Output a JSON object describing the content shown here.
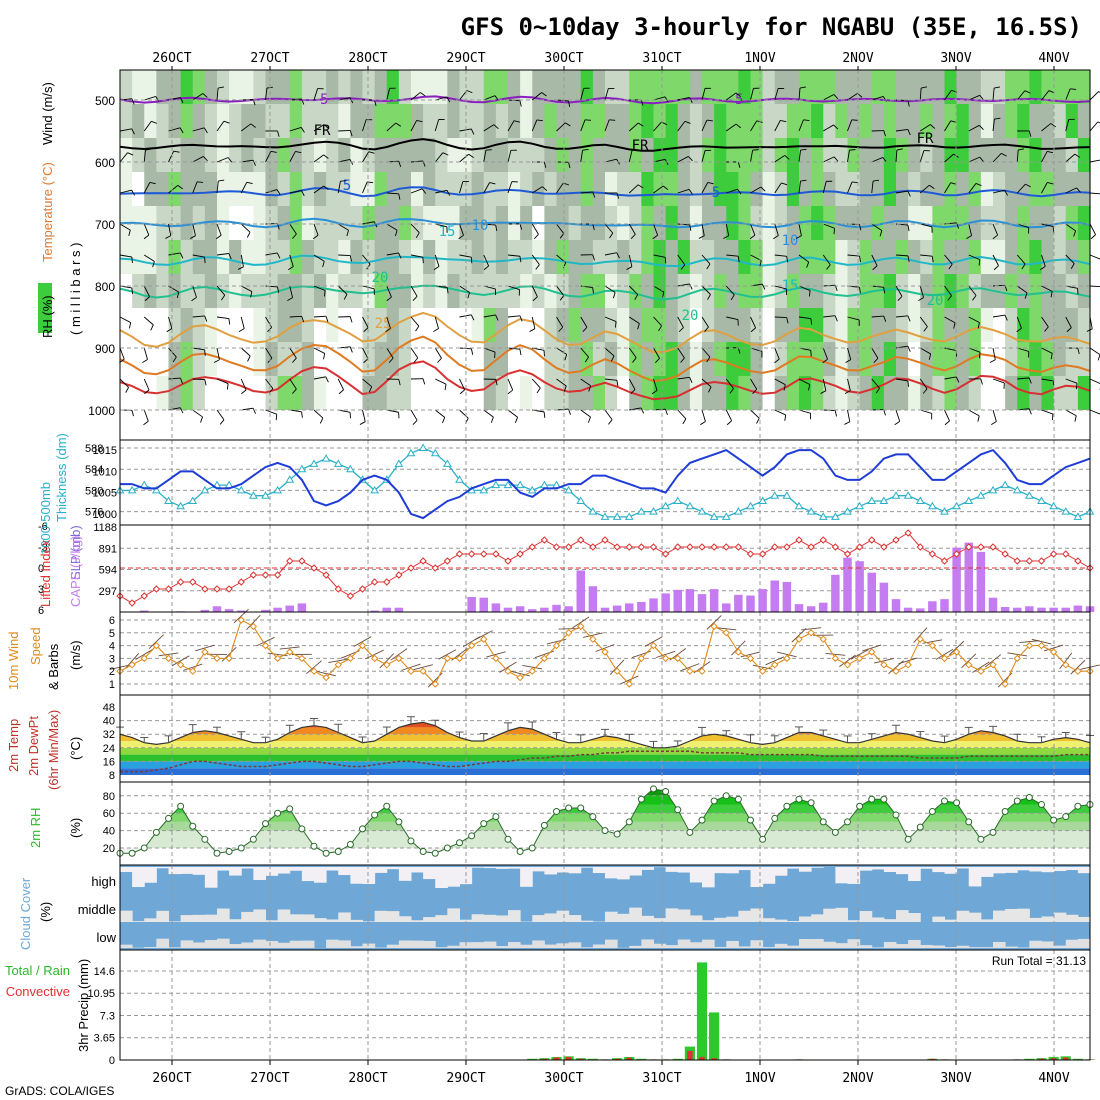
{
  "title": "GFS 0~10day 3-hourly for NGABU (35E, 16.5S)",
  "footer": "GrADS: COLA/IGES",
  "dates": [
    "26OCT",
    "27OCT",
    "28OCT",
    "29OCT",
    "30OCT",
    "31OCT",
    "1NOV",
    "2NOV",
    "3NOV",
    "4NOV"
  ],
  "colors": {
    "wind_line": "#000000",
    "cape_bar": "#c57cf0",
    "lifted_index": "#e03030",
    "slp": "#1e3cd6",
    "thickness": "#2ab0c8",
    "wind10m": "#e08a1a",
    "rh2m": "#2cb82c",
    "cloud": "#6fa8d6",
    "precip_total": "#2cc82c",
    "precip_conv": "#e03030"
  },
  "panels": {
    "upper": {
      "ylabel_rh": "RH (%)",
      "ylabel_temp": "Temperature (°C)",
      "ylabel_wind": "Wind (m/s)",
      "ylabel_mb": "( m i l l i b a r s )",
      "levels": [
        500,
        600,
        700,
        800,
        900,
        1000
      ],
      "isotherm_labels": [
        {
          "text": "-5"
        },
        {
          "text": "-5"
        },
        {
          "text": "FR"
        },
        {
          "text": "FR"
        },
        {
          "text": "FR"
        },
        {
          "text": "5"
        },
        {
          "text": "5"
        },
        {
          "text": "10"
        },
        {
          "text": "10"
        },
        {
          "text": "15"
        },
        {
          "text": "15"
        },
        {
          "text": "20"
        },
        {
          "text": "20"
        },
        {
          "text": "20"
        },
        {
          "text": "25"
        }
      ]
    },
    "slp": {
      "ylabel_thick": "1000-500mb",
      "ylabel_thick2": "Thickness (dm)",
      "ylabel_slp": "SLP (mb)",
      "left_ticks": [
        "588",
        "584",
        "580",
        "576"
      ],
      "right_ticks": [
        "1015",
        "1010",
        "1005",
        "1000"
      ]
    },
    "cape": {
      "ylabel_li": "Lifted Index",
      "ylabel_cape": "CAPE (J/kg)",
      "left_ticks": [
        "-6",
        "-3",
        "0",
        "3",
        "6"
      ],
      "right_ticks": [
        "1188",
        "891",
        "594",
        "297"
      ]
    },
    "wind10": {
      "ylabel1": "10m Wind",
      "ylabel2": "Speed",
      "ylabel3": "& Barbs",
      "ylabel4": "(m/s)",
      "ticks": [
        "6",
        "5",
        "4",
        "3",
        "2",
        "1"
      ]
    },
    "temp": {
      "ylabel1": "2m Temp",
      "ylabel2": "2m DewPt",
      "ylabel3": "(6hr Min/Max)",
      "ylabel4": "(°C)",
      "ticks": [
        "48",
        "40",
        "32",
        "24",
        "16",
        "8"
      ]
    },
    "rh": {
      "ylabel1": "2m RH",
      "ylabel2": "(%)",
      "ticks": [
        "80",
        "60",
        "40",
        "20"
      ]
    },
    "cloud": {
      "ylabel1": "Cloud Cover",
      "ylabel2": "(%)",
      "rows": [
        "high",
        "middle",
        "low"
      ]
    },
    "precip": {
      "ylabel1": "Total / Rain",
      "ylabel2": "Convective",
      "ylabel3": "3hr Precip (mm)",
      "ticks": [
        "14.6",
        "10.95",
        "7.3",
        "3.65",
        "0"
      ],
      "run_total": "Run Total = 31.13"
    }
  },
  "chart_data": {
    "type": "line",
    "x_count": 81,
    "slp_mb": [
      1007,
      1007,
      1006,
      1006,
      1008,
      1010,
      1010,
      1008,
      1006,
      1006,
      1007,
      1009,
      1011,
      1012,
      1011,
      1008,
      1003,
      1002,
      1003,
      1005,
      1008,
      1009,
      1008,
      1005,
      1000,
      999,
      1001,
      1003,
      1004,
      1006,
      1007,
      1008,
      1008,
      1005,
      1004,
      1006,
      1006,
      1007,
      1007,
      1009,
      1009,
      1008,
      1007,
      1006,
      1006,
      1005,
      1009,
      1012,
      1013,
      1014,
      1015,
      1013,
      1011,
      1009,
      1011,
      1014,
      1015,
      1015,
      1013,
      1009,
      1008,
      1008,
      1010,
      1013,
      1014,
      1014,
      1011,
      1008,
      1008,
      1010,
      1012,
      1014,
      1015,
      1012,
      1008,
      1007,
      1007,
      1009,
      1011,
      1012,
      1013
    ],
    "thickness_dm": [
      580,
      580,
      581,
      580,
      578,
      577,
      578,
      580,
      581,
      581,
      580,
      579,
      579,
      580,
      582,
      584,
      585,
      586,
      585,
      584,
      582,
      580,
      582,
      585,
      587,
      588,
      587,
      585,
      582,
      580,
      580,
      581,
      581,
      581,
      580,
      581,
      581,
      580,
      578,
      576,
      575,
      575,
      575,
      576,
      576,
      577,
      578,
      577,
      576,
      575,
      575,
      576,
      577,
      578,
      579,
      579,
      577,
      576,
      575,
      575,
      576,
      577,
      578,
      578,
      579,
      579,
      578,
      577,
      576,
      577,
      578,
      579,
      580,
      581,
      580,
      579,
      578,
      577,
      576,
      575,
      576
    ],
    "lifted_index": [
      4,
      5,
      4,
      3,
      3,
      2,
      2,
      3,
      3,
      3,
      2,
      1,
      1,
      1,
      -1,
      -1,
      0,
      1,
      3,
      4,
      3,
      2,
      2,
      1,
      0,
      -1,
      0,
      -1,
      -2,
      -2,
      -2,
      -2,
      -1,
      -2,
      -3,
      -4,
      -3,
      -3,
      -4,
      -3,
      -4,
      -3,
      -3,
      -3,
      -3,
      -2,
      -3,
      -3,
      -3,
      -3,
      -3,
      -3,
      -2,
      -2,
      -3,
      -3,
      -4,
      -3,
      -4,
      -3,
      -2,
      -3,
      -4,
      -3,
      -4,
      -5,
      -3,
      -2,
      -1,
      -2,
      -3,
      -3,
      -3,
      -2,
      -1,
      -1,
      -1,
      -2,
      -2,
      -1,
      0
    ],
    "cape_jkg": [
      0,
      0,
      20,
      0,
      0,
      10,
      0,
      30,
      80,
      40,
      20,
      0,
      30,
      60,
      90,
      120,
      0,
      0,
      0,
      0,
      0,
      20,
      60,
      60,
      0,
      0,
      0,
      0,
      0,
      210,
      200,
      120,
      60,
      80,
      40,
      60,
      100,
      80,
      580,
      360,
      60,
      90,
      120,
      140,
      190,
      260,
      310,
      320,
      250,
      320,
      120,
      240,
      230,
      320,
      440,
      420,
      110,
      80,
      130,
      520,
      760,
      710,
      550,
      410,
      180,
      60,
      50,
      150,
      180,
      900,
      970,
      840,
      200,
      70,
      60,
      80,
      60,
      60,
      60,
      90,
      80
    ],
    "wind10m_ms": [
      2,
      2.5,
      3,
      4,
      3,
      2.5,
      2,
      3.5,
      3,
      3,
      6,
      5.5,
      4,
      3,
      3.5,
      3,
      2,
      1.5,
      2.5,
      3,
      4,
      3,
      2.5,
      3,
      2,
      2,
      1,
      3,
      3,
      4,
      4.5,
      3,
      2,
      1.5,
      2,
      3,
      4,
      5,
      5.5,
      4.5,
      3.5,
      2,
      1,
      3,
      4,
      3,
      3,
      2,
      2,
      5.5,
      5,
      3.5,
      3,
      2,
      2.5,
      3,
      4.5,
      5,
      4.5,
      3,
      2.5,
      3,
      3.5,
      2.5,
      2,
      2.5,
      4.5,
      4,
      3,
      3.5,
      2.5,
      2,
      2.5,
      1,
      3,
      4,
      4,
      3.5,
      2.5,
      2,
      2
    ],
    "temp2m_c": [
      32,
      30,
      27,
      26,
      27,
      30,
      33,
      34,
      33,
      31,
      29,
      27,
      27,
      29,
      33,
      36,
      37,
      36,
      33,
      30,
      27,
      28,
      32,
      36,
      38,
      39,
      37,
      33,
      30,
      28,
      28,
      31,
      34,
      36,
      35,
      32,
      29,
      27,
      27,
      29,
      31,
      30,
      28,
      26,
      24,
      24,
      25,
      28,
      31,
      32,
      31,
      29,
      27,
      26,
      27,
      30,
      33,
      33,
      31,
      29,
      27,
      27,
      29,
      31,
      33,
      32,
      30,
      28,
      27,
      29,
      32,
      34,
      33,
      31,
      28,
      27,
      27,
      29,
      30,
      29,
      27
    ],
    "dewpt2m_c": [
      10,
      10,
      10,
      11,
      12,
      14,
      16,
      16,
      15,
      14,
      13,
      13,
      13,
      14,
      15,
      16,
      16,
      15,
      14,
      13,
      13,
      14,
      15,
      16,
      16,
      15,
      14,
      13,
      13,
      14,
      15,
      16,
      16,
      17,
      18,
      18,
      19,
      19,
      20,
      20,
      21,
      21,
      22,
      22,
      22,
      22,
      22,
      22,
      21,
      21,
      21,
      21,
      20,
      20,
      20,
      20,
      20,
      20,
      19,
      19,
      19,
      19,
      19,
      19,
      19,
      19,
      18,
      18,
      18,
      18,
      19,
      19,
      19,
      19,
      19,
      19,
      19,
      19,
      20,
      20,
      20
    ],
    "rh2m_pct": [
      14,
      14,
      20,
      38,
      54,
      68,
      45,
      30,
      14,
      16,
      20,
      30,
      48,
      60,
      65,
      42,
      22,
      14,
      16,
      24,
      42,
      58,
      68,
      50,
      28,
      16,
      14,
      20,
      26,
      34,
      48,
      56,
      30,
      16,
      20,
      46,
      62,
      66,
      66,
      56,
      40,
      36,
      50,
      76,
      88,
      85,
      64,
      38,
      52,
      74,
      80,
      76,
      52,
      30,
      54,
      68,
      76,
      72,
      50,
      38,
      50,
      68,
      76,
      76,
      58,
      30,
      44,
      62,
      74,
      72,
      50,
      30,
      38,
      62,
      74,
      78,
      70,
      52,
      56,
      68,
      70
    ],
    "precip_total_mm": [
      0,
      0,
      0,
      0,
      0,
      0,
      0,
      0,
      0,
      0,
      0,
      0,
      0,
      0,
      0,
      0,
      0,
      0,
      0,
      0,
      0,
      0,
      0,
      0,
      0,
      0,
      0,
      0,
      0,
      0,
      0,
      0,
      0,
      0,
      0.2,
      0.3,
      0.5,
      0.6,
      0.3,
      0.2,
      0.1,
      0.3,
      0.5,
      0.2,
      0.1,
      0.1,
      0.2,
      2.2,
      16.0,
      7.8,
      0.1,
      0,
      0,
      0,
      0,
      0,
      0.1,
      0,
      0,
      0,
      0,
      0,
      0,
      0,
      0,
      0,
      0,
      0.2,
      0.1,
      0,
      0,
      0,
      0,
      0,
      0.1,
      0.2,
      0.3,
      0.5,
      0.6,
      0.2,
      0.1
    ],
    "precip_conv_mm": [
      0,
      0,
      0,
      0,
      0,
      0,
      0,
      0,
      0,
      0,
      0,
      0,
      0,
      0,
      0,
      0,
      0,
      0,
      0,
      0,
      0,
      0,
      0,
      0,
      0,
      0,
      0,
      0,
      0,
      0,
      0,
      0,
      0,
      0,
      0.1,
      0.2,
      0.4,
      0.5,
      0.2,
      0.1,
      0.1,
      0.2,
      0.4,
      0.1,
      0.1,
      0.1,
      0.1,
      1.5,
      0.5,
      0.3,
      0.1,
      0,
      0,
      0,
      0,
      0,
      0.1,
      0,
      0,
      0,
      0,
      0,
      0,
      0,
      0,
      0,
      0,
      0.2,
      0.1,
      0,
      0,
      0,
      0,
      0,
      0.1,
      0.1,
      0.2,
      0.3,
      0.4,
      0.1,
      0.1
    ]
  }
}
